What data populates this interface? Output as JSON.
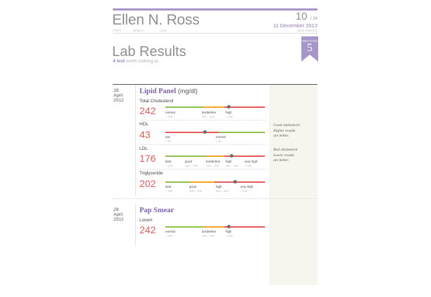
{
  "header": {
    "name": "Ellen N. Ross",
    "name_labels": [
      "FIRST",
      "MIDDLE",
      "LAST"
    ],
    "page_current": "10",
    "page_total": "/ 24",
    "date": "11 December 2012",
    "date_label": "DATE PRINTED"
  },
  "page": {
    "title": "Lab Results",
    "subtitle_count": "4 test",
    "subtitle_rest": "worth looking at.",
    "section_label": "SECTION",
    "section_number": "5"
  },
  "sections": [
    {
      "date_lines": [
        "28",
        "April",
        "2012"
      ],
      "title": "Lipid Panel",
      "unit": "(mg/dl)",
      "tests": [
        {
          "name": "Total Cholesterol",
          "value": "242",
          "ranges": [
            {
              "label": "normal",
              "sub": "< 200"
            },
            {
              "label": "borderline",
              "sub": "200 – 240"
            },
            {
              "label": "high",
              "sub": "> 240"
            }
          ],
          "note": []
        },
        {
          "name": "HDL",
          "value": "43",
          "ranges": [
            {
              "label": "low",
              "sub": "< 50"
            },
            {
              "label": "normal",
              "sub": "> 50"
            }
          ],
          "note": [
            "Good cholesterol",
            "Higher results",
            "are better."
          ]
        },
        {
          "name": "LDL",
          "value": "176",
          "ranges": [
            {
              "label": "best",
              "sub": "< 100"
            },
            {
              "label": "good",
              "sub": "100 – 129"
            },
            {
              "label": "borderline",
              "sub": "130 – 159"
            },
            {
              "label": "high",
              "sub": "160 – 190"
            },
            {
              "label": "very high",
              "sub": "> 190"
            }
          ],
          "note": [
            "Bad cholesterol",
            "Lower results",
            "are better."
          ]
        },
        {
          "name": "Triglyceride",
          "value": "202",
          "ranges": [
            {
              "label": "best",
              "sub": "< 150"
            },
            {
              "label": "good",
              "sub": "150 – 199"
            },
            {
              "label": "high",
              "sub": "200 – 500"
            },
            {
              "label": "very high",
              "sub": "> 500"
            }
          ],
          "note": []
        }
      ]
    },
    {
      "date_lines": [
        "28",
        "April",
        "2012"
      ],
      "title": "Pap Smear",
      "unit": "",
      "tests": [
        {
          "name": "Lorem",
          "value": "242",
          "ranges": [
            {
              "label": "normal",
              "sub": "< 200"
            },
            {
              "label": "borderline",
              "sub": "200 – 240"
            },
            {
              "label": "high",
              "sub": "> 240"
            }
          ],
          "note": []
        }
      ]
    }
  ],
  "colors": {
    "accent": "#a595c9",
    "value": "#e85a5a",
    "good": "#8bc34a",
    "warn": "#f5a623",
    "bad": "#e85a5a"
  }
}
